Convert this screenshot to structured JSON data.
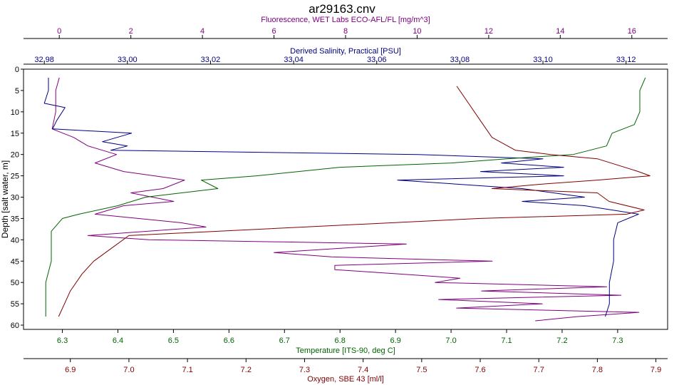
{
  "chart_data": {
    "type": "line",
    "title": "ar29163.cnv",
    "colors": {
      "fluorescence": "#800080",
      "salinity": "#000080",
      "temperature": "#006400",
      "oxygen": "#800000"
    },
    "y_axis": {
      "label": "Depth [salt water, m]",
      "range": [
        0,
        61
      ],
      "inverted": true,
      "ticks": [
        0,
        5,
        10,
        15,
        20,
        25,
        30,
        35,
        40,
        45,
        50,
        55,
        60
      ],
      "tick_labels": [
        "0",
        "5",
        "10",
        "15",
        "20",
        "25",
        "30",
        "35",
        "40",
        "45",
        "50",
        "55",
        "60"
      ]
    },
    "x_axes": [
      {
        "key": "fluorescence",
        "label": "Fluorescence, WET Labs ECO-AFL/FL [mg/m^3]",
        "position": "top",
        "range": [
          -1.0,
          17.0
        ],
        "ticks": [
          0,
          2,
          4,
          6,
          8,
          10,
          12,
          14,
          16
        ],
        "tick_labels": [
          "0",
          "2",
          "4",
          "6",
          "8",
          "10",
          "12",
          "14",
          "16"
        ]
      },
      {
        "key": "salinity",
        "label": "Derived Salinity, Practical [PSU]",
        "position": "top",
        "range": [
          32.975,
          33.13
        ],
        "ticks": [
          32.98,
          33.0,
          33.02,
          33.04,
          33.06,
          33.08,
          33.1,
          33.12
        ],
        "tick_labels": [
          "32.98",
          "33.00",
          "33.02",
          "33.04",
          "33.06",
          "33.08",
          "33.10",
          "33.12"
        ]
      },
      {
        "key": "temperature",
        "label": "Temperature [ITS-90, deg C]",
        "position": "bottom",
        "range": [
          6.23,
          7.39
        ],
        "ticks": [
          6.3,
          6.4,
          6.5,
          6.6,
          6.7,
          6.8,
          6.9,
          7.0,
          7.1,
          7.2,
          7.3
        ],
        "tick_labels": [
          "6.3",
          "6.4",
          "6.5",
          "6.6",
          "6.7",
          "6.8",
          "6.9",
          "7.0",
          "7.1",
          "7.2",
          "7.3"
        ]
      },
      {
        "key": "oxygen",
        "label": "Oxygen, SBE 43 [ml/l]",
        "position": "bottom",
        "range": [
          6.82,
          7.92
        ],
        "ticks": [
          6.9,
          7.0,
          7.1,
          7.2,
          7.3,
          7.4,
          7.5,
          7.6,
          7.7,
          7.8,
          7.9
        ],
        "tick_labels": [
          "6.9",
          "7.0",
          "7.1",
          "7.2",
          "7.3",
          "7.4",
          "7.5",
          "7.6",
          "7.7",
          "7.8",
          "7.9"
        ]
      }
    ],
    "series": [
      {
        "key": "fluorescence",
        "points": [
          [
            0.0,
            2
          ],
          [
            -0.1,
            5
          ],
          [
            -0.1,
            10
          ],
          [
            -0.2,
            14
          ],
          [
            0.4,
            16
          ],
          [
            0.8,
            18
          ],
          [
            1.6,
            20
          ],
          [
            1.0,
            22
          ],
          [
            1.8,
            24
          ],
          [
            3.5,
            26
          ],
          [
            2.9,
            28
          ],
          [
            2.0,
            29
          ],
          [
            3.2,
            31
          ],
          [
            1.8,
            32
          ],
          [
            1.0,
            34
          ],
          [
            2.2,
            35
          ],
          [
            3.4,
            36
          ],
          [
            4.1,
            37
          ],
          [
            0.8,
            39
          ],
          [
            2.5,
            40
          ],
          [
            6.2,
            40.5
          ],
          [
            9.7,
            41
          ],
          [
            6.0,
            43
          ],
          [
            7.6,
            44
          ],
          [
            12.1,
            45
          ],
          [
            7.7,
            46
          ],
          [
            7.7,
            47
          ],
          [
            9.5,
            48
          ],
          [
            11.2,
            49
          ],
          [
            10.5,
            50
          ],
          [
            15.3,
            51
          ],
          [
            11.8,
            52
          ],
          [
            15.7,
            53
          ],
          [
            10.6,
            54
          ],
          [
            13.5,
            55
          ],
          [
            11.1,
            56
          ],
          [
            16.2,
            57
          ],
          [
            14.5,
            58
          ],
          [
            13.3,
            59
          ]
        ]
      },
      {
        "key": "salinity",
        "points": [
          [
            32.981,
            2
          ],
          [
            32.981,
            5
          ],
          [
            32.98,
            8
          ],
          [
            32.985,
            9
          ],
          [
            32.983,
            12
          ],
          [
            32.982,
            14
          ],
          [
            33.001,
            15
          ],
          [
            32.994,
            17
          ],
          [
            33.0,
            18
          ],
          [
            32.996,
            19
          ],
          [
            33.07,
            20
          ],
          [
            33.1,
            21
          ],
          [
            33.09,
            22
          ],
          [
            33.105,
            23
          ],
          [
            33.085,
            24
          ],
          [
            33.105,
            25
          ],
          [
            33.065,
            26
          ],
          [
            33.095,
            28
          ],
          [
            33.11,
            30
          ],
          [
            33.095,
            31
          ],
          [
            33.11,
            32
          ],
          [
            33.123,
            34
          ],
          [
            33.118,
            36
          ],
          [
            33.117,
            40
          ],
          [
            33.117,
            45
          ],
          [
            33.116,
            50
          ],
          [
            33.116,
            55
          ],
          [
            33.115,
            58
          ]
        ]
      },
      {
        "key": "temperature",
        "points": [
          [
            7.35,
            2
          ],
          [
            7.34,
            5
          ],
          [
            7.34,
            10
          ],
          [
            7.33,
            13
          ],
          [
            7.29,
            15
          ],
          [
            7.28,
            18
          ],
          [
            7.22,
            20
          ],
          [
            7.1,
            21
          ],
          [
            7.0,
            22
          ],
          [
            6.8,
            23
          ],
          [
            6.65,
            25
          ],
          [
            6.55,
            26
          ],
          [
            6.58,
            28
          ],
          [
            6.45,
            30
          ],
          [
            6.4,
            32
          ],
          [
            6.33,
            34
          ],
          [
            6.3,
            35
          ],
          [
            6.28,
            38
          ],
          [
            6.28,
            45
          ],
          [
            6.27,
            50
          ],
          [
            6.27,
            55
          ],
          [
            6.27,
            58
          ]
        ]
      },
      {
        "key": "oxygen",
        "points": [
          [
            7.56,
            4
          ],
          [
            7.58,
            8
          ],
          [
            7.6,
            12
          ],
          [
            7.62,
            16
          ],
          [
            7.66,
            19
          ],
          [
            7.72,
            20
          ],
          [
            7.8,
            21
          ],
          [
            7.87,
            24
          ],
          [
            7.89,
            25
          ],
          [
            7.8,
            26
          ],
          [
            7.7,
            27
          ],
          [
            7.62,
            28
          ],
          [
            7.8,
            29
          ],
          [
            7.82,
            31
          ],
          [
            7.88,
            33
          ],
          [
            7.85,
            34
          ],
          [
            7.6,
            35
          ],
          [
            7.3,
            37
          ],
          [
            7.0,
            39
          ],
          [
            6.97,
            42
          ],
          [
            6.94,
            45
          ],
          [
            6.92,
            48
          ],
          [
            6.9,
            52
          ],
          [
            6.89,
            55
          ],
          [
            6.88,
            58
          ]
        ]
      }
    ]
  }
}
